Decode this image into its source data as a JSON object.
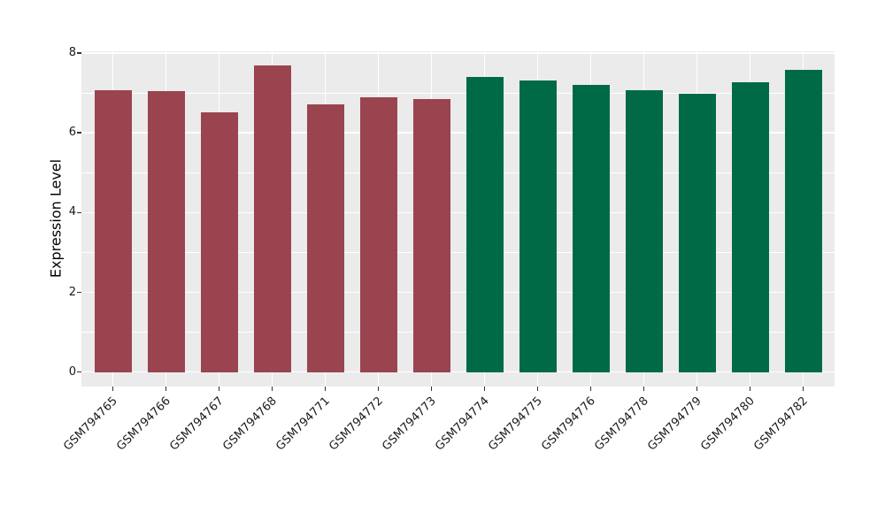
{
  "chart_data": {
    "type": "bar",
    "title": "",
    "xlabel": "",
    "ylabel": "Expression Level",
    "ylim": [
      0,
      8
    ],
    "yticks": [
      0,
      2,
      4,
      6,
      8
    ],
    "ytick_labels": [
      "0",
      "2",
      "4",
      "6",
      "8"
    ],
    "minor_yticks": [
      1,
      3,
      5,
      7
    ],
    "grid": true,
    "legend": false,
    "categories": [
      "GSM794765",
      "GSM794766",
      "GSM794767",
      "GSM794768",
      "GSM794771",
      "GSM794772",
      "GSM794773",
      "GSM794774",
      "GSM794775",
      "GSM794776",
      "GSM794778",
      "GSM794779",
      "GSM794780",
      "GSM794782"
    ],
    "values": [
      7.06,
      7.05,
      6.52,
      7.68,
      6.71,
      6.89,
      6.85,
      7.39,
      7.32,
      7.2,
      7.07,
      6.97,
      7.27,
      7.58
    ],
    "bar_colors": [
      "#9A4450",
      "#9A4450",
      "#9A4450",
      "#9A4450",
      "#9A4450",
      "#9A4450",
      "#9A4450",
      "#006A47",
      "#006A47",
      "#006A47",
      "#006A47",
      "#006A47",
      "#006A47",
      "#006A47"
    ],
    "colors": {
      "red_group": "#9A4450",
      "green_group": "#006A47",
      "panel_background": "#EBEBEB",
      "gridline": "#FFFFFF",
      "tick_text": "#1A1A1A",
      "axis_title_text": "#000000",
      "figure_background": "#FFFFFF"
    }
  }
}
